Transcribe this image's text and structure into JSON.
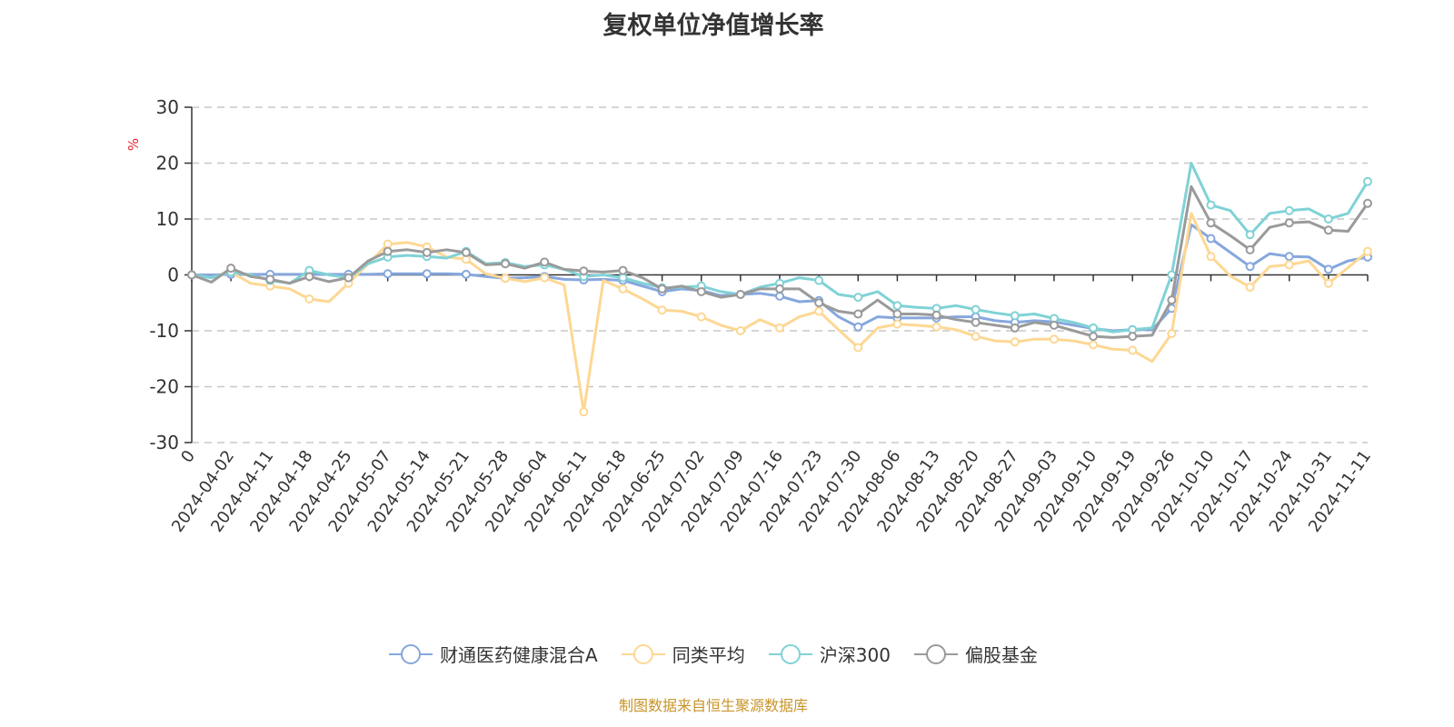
{
  "chart_data": {
    "type": "line",
    "title": "复权单位净值增长率",
    "ylabel": "%",
    "ylim": [
      -30,
      30
    ],
    "yticks": [
      30,
      20,
      10,
      0,
      -10,
      -20,
      -30
    ],
    "grid": true,
    "legend_position": "bottom",
    "categories": [
      "0",
      "",
      "2024-04-02",
      "",
      "2024-04-11",
      "",
      "2024-04-18",
      "",
      "2024-04-25",
      "",
      "2024-05-07",
      "",
      "2024-05-14",
      "",
      "2024-05-21",
      "",
      "2024-05-28",
      "",
      "2024-06-04",
      "",
      "2024-06-11",
      "",
      "2024-06-18",
      "",
      "2024-06-25",
      "",
      "2024-07-02",
      "",
      "2024-07-09",
      "",
      "2024-07-16",
      "",
      "2024-07-23",
      "",
      "2024-07-30",
      "",
      "2024-08-06",
      "",
      "2024-08-13",
      "",
      "2024-08-20",
      "",
      "2024-08-27",
      "",
      "2024-09-03",
      "",
      "2024-09-10",
      "",
      "2024-09-19",
      "",
      "2024-09-26",
      "",
      "2024-10-10",
      "",
      "2024-10-17",
      "",
      "2024-10-24",
      "",
      "2024-10-31",
      "",
      "2024-11-11"
    ],
    "series": [
      {
        "name": "财通医药健康混合A",
        "color": "#86a7dd",
        "values": [
          0,
          0,
          0.1,
          0.1,
          0.1,
          0.1,
          0.1,
          0.1,
          0.1,
          0.1,
          0.2,
          0.2,
          0.2,
          0.2,
          0.1,
          -0.3,
          -0.6,
          -0.5,
          -0.3,
          -0.8,
          -0.9,
          -0.8,
          -1.0,
          -2.0,
          -3.0,
          -2.5,
          -2.8,
          -3.7,
          -3.5,
          -3.3,
          -3.8,
          -4.8,
          -4.6,
          -7.5,
          -9.3,
          -7.5,
          -7.7,
          -7.7,
          -7.7,
          -7.5,
          -7.5,
          -8.2,
          -8.5,
          -8.2,
          -8.4,
          -9.0,
          -9.6,
          -10.0,
          -9.8,
          -9.8,
          -6.0,
          9.0,
          6.5,
          4.0,
          1.5,
          3.8,
          3.3,
          3.2,
          1.0,
          2.5,
          3.2
        ]
      },
      {
        "name": "同类平均",
        "color": "#fdd793",
        "values": [
          0,
          -0.5,
          0.5,
          -1.5,
          -2.0,
          -2.5,
          -4.3,
          -4.8,
          -1.5,
          2.0,
          5.5,
          5.8,
          5.0,
          3.2,
          2.8,
          0.2,
          -0.6,
          -1.2,
          -0.5,
          -1.8,
          -24.5,
          -1.0,
          -2.5,
          -4.3,
          -6.3,
          -6.5,
          -7.5,
          -9.0,
          -10.0,
          -8.0,
          -9.5,
          -7.5,
          -6.5,
          -9.8,
          -13.0,
          -9.5,
          -8.8,
          -9.0,
          -9.3,
          -9.8,
          -11.0,
          -11.8,
          -12.0,
          -11.5,
          -11.5,
          -11.8,
          -12.5,
          -13.3,
          -13.5,
          -15.5,
          -10.5,
          11.0,
          3.3,
          -0.2,
          -2.2,
          1.5,
          1.8,
          2.5,
          -1.5,
          1.3,
          4.2
        ]
      },
      {
        "name": "沪深300",
        "color": "#80d2d6",
        "values": [
          0,
          -0.5,
          0.5,
          0,
          -1.0,
          -1.5,
          0.8,
          0,
          -0.5,
          2.0,
          3.2,
          3.5,
          3.3,
          3.0,
          4.2,
          2.0,
          2.2,
          1.5,
          1.8,
          1.0,
          -0.3,
          0,
          -0.5,
          -1.5,
          -2.3,
          -2.2,
          -2.0,
          -3.0,
          -3.5,
          -2.2,
          -1.5,
          -0.5,
          -1.0,
          -3.5,
          -4.0,
          -3.0,
          -5.5,
          -5.8,
          -6.0,
          -5.5,
          -6.2,
          -6.8,
          -7.3,
          -7.0,
          -7.8,
          -8.5,
          -9.5,
          -10.2,
          -9.8,
          -9.5,
          0,
          20.0,
          12.5,
          11.5,
          7.2,
          11.0,
          11.5,
          11.8,
          10.0,
          11.0,
          16.7
        ]
      },
      {
        "name": "偏股基金",
        "color": "#9a9a9a",
        "values": [
          0,
          -1.3,
          1.2,
          -0.3,
          -0.8,
          -1.5,
          -0.3,
          -1.2,
          -0.5,
          2.5,
          4.2,
          4.5,
          4.0,
          4.5,
          4.0,
          1.8,
          2.0,
          1.2,
          2.3,
          1.0,
          0.7,
          0.5,
          0.8,
          -0.5,
          -2.5,
          -2.0,
          -3.0,
          -4.0,
          -3.5,
          -2.5,
          -2.5,
          -2.5,
          -5.0,
          -6.5,
          -7.0,
          -4.5,
          -7.0,
          -7.0,
          -7.2,
          -8.0,
          -8.5,
          -9.0,
          -9.5,
          -8.5,
          -9.0,
          -10.0,
          -11.0,
          -11.2,
          -11.0,
          -10.8,
          -4.5,
          15.8,
          9.3,
          7.0,
          4.5,
          8.5,
          9.3,
          9.5,
          8.0,
          7.8,
          12.8
        ]
      }
    ]
  },
  "footer": "制图数据来自恒生聚源数据库"
}
